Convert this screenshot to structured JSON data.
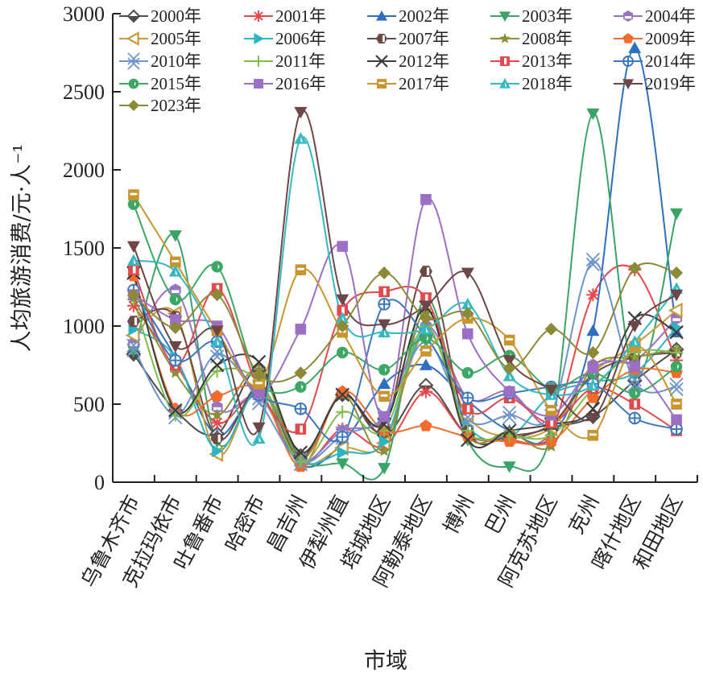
{
  "chart_data": {
    "type": "line",
    "title": "",
    "xlabel": "市域",
    "ylabel": "人均旅游消费/元·人⁻¹",
    "ylim": [
      0,
      3000
    ],
    "yticks": [
      0,
      500,
      1000,
      1500,
      2000,
      2500,
      3000
    ],
    "grid": false,
    "smooth": true,
    "legend_position": "top-left",
    "categories": [
      "乌鲁木齐市",
      "克拉玛依市",
      "吐鲁番市",
      "哈密市",
      "昌吉州",
      "伊犁州直",
      "塔城地区",
      "阿勒泰地区",
      "博州",
      "巴州",
      "阿克苏地区",
      "克州",
      "喀什地区",
      "和田地区"
    ],
    "series": [
      {
        "name": "2000年",
        "color": "#4d4d4d",
        "marker": "diamond-open",
        "values": [
          820,
          460,
          310,
          720,
          170,
          560,
          300,
          620,
          300,
          280,
          350,
          420,
          650,
          850
        ]
      },
      {
        "name": "2001年",
        "color": "#e8474a",
        "marker": "asterisk",
        "values": [
          1130,
          760,
          380,
          560,
          120,
          340,
          230,
          580,
          300,
          270,
          330,
          1200,
          1360,
          780
        ]
      },
      {
        "name": "2002年",
        "color": "#2e6fbf",
        "marker": "triangle-up",
        "values": [
          1230,
          800,
          300,
          560,
          110,
          250,
          630,
          750,
          520,
          330,
          290,
          970,
          2780,
          960
        ]
      },
      {
        "name": "2003年",
        "color": "#3aa365",
        "marker": "triangle-down",
        "values": [
          840,
          1580,
          260,
          620,
          150,
          120,
          90,
          1180,
          270,
          100,
          320,
          2360,
          680,
          1720
        ]
      },
      {
        "name": "2004年",
        "color": "#9a73c2",
        "marker": "hexagon-half",
        "values": [
          890,
          1230,
          480,
          550,
          140,
          330,
          410,
          1000,
          540,
          580,
          360,
          750,
          780,
          1050
        ]
      },
      {
        "name": "2005年",
        "color": "#c99a3a",
        "marker": "triangle-left-open",
        "values": [
          940,
          1080,
          180,
          610,
          130,
          220,
          250,
          960,
          420,
          290,
          350,
          700,
          880,
          1100
        ]
      },
      {
        "name": "2006年",
        "color": "#2bb5c2",
        "marker": "triangle-right",
        "values": [
          980,
          800,
          200,
          590,
          140,
          190,
          260,
          980,
          360,
          290,
          560,
          640,
          700,
          990
        ]
      },
      {
        "name": "2007年",
        "color": "#6e4a44",
        "marker": "hexagon-split",
        "values": [
          1030,
          1060,
          280,
          600,
          160,
          570,
          350,
          1350,
          330,
          300,
          370,
          690,
          800,
          830
        ]
      },
      {
        "name": "2008年",
        "color": "#8a8f3a",
        "marker": "star",
        "values": [
          1180,
          700,
          430,
          720,
          150,
          560,
          200,
          1100,
          300,
          320,
          230,
          740,
          800,
          850
        ]
      },
      {
        "name": "2009年",
        "color": "#f26b2a",
        "marker": "pentagon",
        "values": [
          1320,
          470,
          550,
          590,
          100,
          580,
          330,
          360,
          290,
          260,
          260,
          540,
          720,
          700
        ]
      },
      {
        "name": "2010年",
        "color": "#6c94c9",
        "marker": "x-double",
        "values": [
          860,
          430,
          820,
          520,
          130,
          300,
          420,
          900,
          400,
          430,
          440,
          1410,
          640,
          610
        ]
      },
      {
        "name": "2011年",
        "color": "#7cbf4a",
        "marker": "plus",
        "values": [
          1170,
          430,
          710,
          640,
          130,
          450,
          330,
          1000,
          330,
          300,
          300,
          600,
          830,
          830
        ]
      },
      {
        "name": "2012年",
        "color": "#3d3d3d",
        "marker": "x",
        "values": [
          1340,
          460,
          750,
          770,
          190,
          560,
          370,
          1120,
          270,
          330,
          370,
          470,
          1050,
          960
        ]
      },
      {
        "name": "2013年",
        "color": "#e04a4d",
        "marker": "square-half",
        "values": [
          1360,
          750,
          1240,
          600,
          340,
          1100,
          1220,
          1180,
          470,
          540,
          380,
          600,
          500,
          330
        ]
      },
      {
        "name": "2014年",
        "color": "#3b78c0",
        "marker": "circle-cross",
        "values": [
          1230,
          780,
          900,
          560,
          470,
          290,
          1140,
          930,
          540,
          570,
          610,
          630,
          410,
          340
        ]
      },
      {
        "name": "2015年",
        "color": "#3da866",
        "marker": "circle-half",
        "values": [
          1780,
          1170,
          1380,
          650,
          610,
          830,
          720,
          920,
          700,
          810,
          600,
          700,
          570,
          740
        ]
      },
      {
        "name": "2016年",
        "color": "#9b6fc3",
        "marker": "square",
        "values": [
          1200,
          1040,
          1000,
          570,
          980,
          1510,
          420,
          1810,
          950,
          580,
          430,
          730,
          740,
          400
        ]
      },
      {
        "name": "2017年",
        "color": "#c9952f",
        "marker": "square-open-bar",
        "values": [
          1840,
          1410,
          970,
          630,
          1360,
          960,
          550,
          840,
          1050,
          910,
          460,
          300,
          870,
          500
        ]
      },
      {
        "name": "2018年",
        "color": "#36b8c0",
        "marker": "triangle-up-open",
        "values": [
          1420,
          1350,
          900,
          280,
          2200,
          1050,
          960,
          980,
          1140,
          680,
          560,
          620,
          900,
          1240
        ]
      },
      {
        "name": "2019年",
        "color": "#6e4647",
        "marker": "triangle-down",
        "values": [
          1510,
          870,
          970,
          350,
          2370,
          1170,
          1010,
          1130,
          1340,
          780,
          590,
          410,
          1000,
          1200
        ]
      },
      {
        "name": "2023年",
        "color": "#8c8a36",
        "marker": "diamond",
        "values": [
          1200,
          990,
          1200,
          690,
          700,
          1000,
          1340,
          1050,
          1080,
          730,
          980,
          830,
          1370,
          1340
        ]
      }
    ]
  }
}
